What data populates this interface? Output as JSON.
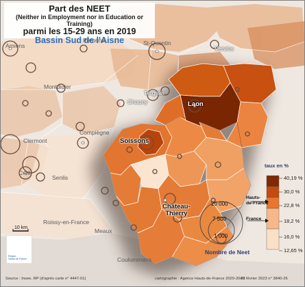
{
  "title": {
    "line1": "Part des NEET",
    "line2": "(Neither in Employment nor in Education or Training)",
    "line3": "parmi les 15-29 ans en 2019",
    "line4": "Bassin Sud de l'Aisne"
  },
  "cities": {
    "amiens": "Amiens",
    "peronne": "Péronne",
    "saint_quentin": "St-Quentin",
    "vervins": "Vervins",
    "montdidier": "Montdidier",
    "tergnier": "Tergnier",
    "chauny": "Chauny",
    "laon": "Laon",
    "compiegne": "Compiègne",
    "soissons": "Soissons",
    "clermont": "Clermont",
    "creil": "Creil",
    "senlis": "Senlis",
    "chateau_thierry": "Château-\nThierry",
    "roissy": "Roissy-en-France",
    "meaux": "Meaux",
    "coulommiers": "Coulommiers"
  },
  "legend": {
    "title": "taux en %",
    "classes": [
      {
        "label": "40,19 %",
        "color": "#7e2a05"
      },
      {
        "label": "30,0 %",
        "color": "#c44a0d"
      },
      {
        "label": "22,8 %",
        "color": "#e9762e"
      },
      {
        "label": "18,2 %",
        "color": "#f6b78a"
      },
      {
        "label": "16,0 %",
        "color": "#fbe0c8"
      },
      {
        "label": "12,65 %",
        "color": ""
      }
    ],
    "reference_hdf": "Hauts-\nde-France",
    "reference_france": "France"
  },
  "bubbles": {
    "title": "Nombre de Neet",
    "values": [
      "20 000",
      "7 500",
      "1 000"
    ]
  },
  "scale": {
    "label": "10 km"
  },
  "logo": {
    "text": "Région\nHauts-de-France"
  },
  "footer": {
    "source": "Source : Insee, RP (d'après carte n° 4447-01)",
    "credit": "cartographie : Agence Hauts-de-France 2020-2040",
    "date": "23 février 2023 n° 3840-26"
  }
}
